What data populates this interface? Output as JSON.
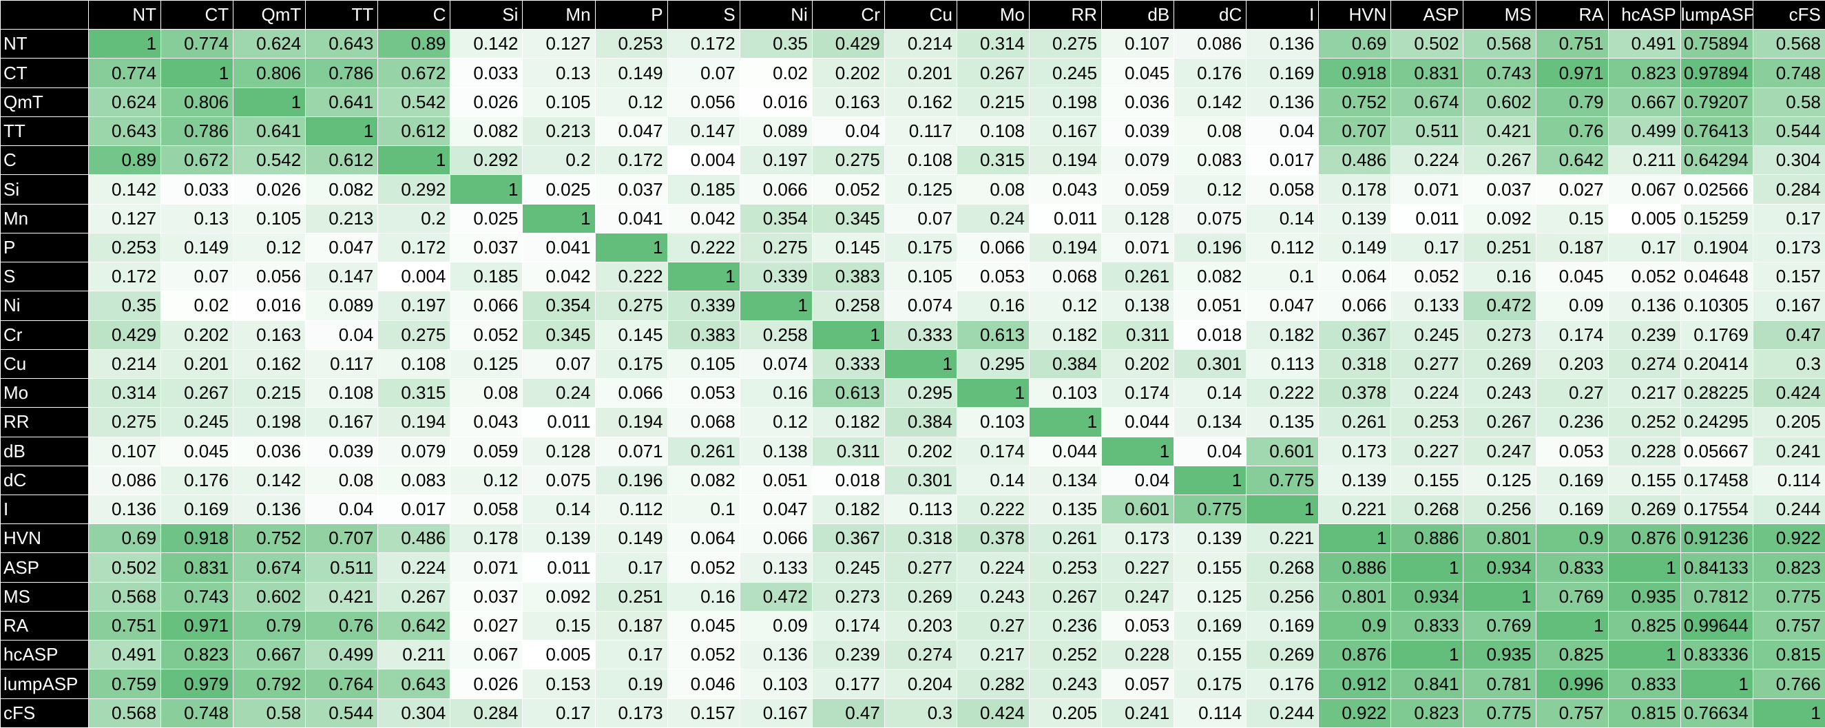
{
  "chart_data": {
    "type": "heatmap",
    "colors": {
      "low": "#ffffff",
      "high": "#63be7b",
      "header_bg": "#000000",
      "header_text": "#ffffff"
    },
    "color_range": [
      0,
      1
    ],
    "columns": [
      "NT",
      "CT",
      "QmT",
      "TT",
      "C",
      "Si",
      "Mn",
      "P",
      "S",
      "Ni",
      "Cr",
      "Cu",
      "Mo",
      "RR",
      "dB",
      "dC",
      "I",
      "HVN",
      "ASP",
      "MS",
      "RA",
      "hcASP",
      "lumpASP",
      "cFS"
    ],
    "rows": [
      {
        "label": "NT",
        "values": [
          "1",
          "0.774",
          "0.624",
          "0.643",
          "0.89",
          "0.142",
          "0.127",
          "0.253",
          "0.172",
          "0.35",
          "0.429",
          "0.214",
          "0.314",
          "0.275",
          "0.107",
          "0.086",
          "0.136",
          "0.69",
          "0.502",
          "0.568",
          "0.751",
          "0.491",
          "0.75894",
          "0.568"
        ]
      },
      {
        "label": "CT",
        "values": [
          "0.774",
          "1",
          "0.806",
          "0.786",
          "0.672",
          "0.033",
          "0.13",
          "0.149",
          "0.07",
          "0.02",
          "0.202",
          "0.201",
          "0.267",
          "0.245",
          "0.045",
          "0.176",
          "0.169",
          "0.918",
          "0.831",
          "0.743",
          "0.971",
          "0.823",
          "0.97894",
          "0.748"
        ]
      },
      {
        "label": "QmT",
        "values": [
          "0.624",
          "0.806",
          "1",
          "0.641",
          "0.542",
          "0.026",
          "0.105",
          "0.12",
          "0.056",
          "0.016",
          "0.163",
          "0.162",
          "0.215",
          "0.198",
          "0.036",
          "0.142",
          "0.136",
          "0.752",
          "0.674",
          "0.602",
          "0.79",
          "0.667",
          "0.79207",
          "0.58"
        ]
      },
      {
        "label": "TT",
        "values": [
          "0.643",
          "0.786",
          "0.641",
          "1",
          "0.612",
          "0.082",
          "0.213",
          "0.047",
          "0.147",
          "0.089",
          "0.04",
          "0.117",
          "0.108",
          "0.167",
          "0.039",
          "0.08",
          "0.04",
          "0.707",
          "0.511",
          "0.421",
          "0.76",
          "0.499",
          "0.76413",
          "0.544"
        ]
      },
      {
        "label": "C",
        "values": [
          "0.89",
          "0.672",
          "0.542",
          "0.612",
          "1",
          "0.292",
          "0.2",
          "0.172",
          "0.004",
          "0.197",
          "0.275",
          "0.108",
          "0.315",
          "0.194",
          "0.079",
          "0.083",
          "0.017",
          "0.486",
          "0.224",
          "0.267",
          "0.642",
          "0.211",
          "0.64294",
          "0.304"
        ]
      },
      {
        "label": "Si",
        "values": [
          "0.142",
          "0.033",
          "0.026",
          "0.082",
          "0.292",
          "1",
          "0.025",
          "0.037",
          "0.185",
          "0.066",
          "0.052",
          "0.125",
          "0.08",
          "0.043",
          "0.059",
          "0.12",
          "0.058",
          "0.178",
          "0.071",
          "0.037",
          "0.027",
          "0.067",
          "0.02566",
          "0.284"
        ]
      },
      {
        "label": "Mn",
        "values": [
          "0.127",
          "0.13",
          "0.105",
          "0.213",
          "0.2",
          "0.025",
          "1",
          "0.041",
          "0.042",
          "0.354",
          "0.345",
          "0.07",
          "0.24",
          "0.011",
          "0.128",
          "0.075",
          "0.14",
          "0.139",
          "0.011",
          "0.092",
          "0.15",
          "0.005",
          "0.15259",
          "0.17"
        ]
      },
      {
        "label": "P",
        "values": [
          "0.253",
          "0.149",
          "0.12",
          "0.047",
          "0.172",
          "0.037",
          "0.041",
          "1",
          "0.222",
          "0.275",
          "0.145",
          "0.175",
          "0.066",
          "0.194",
          "0.071",
          "0.196",
          "0.112",
          "0.149",
          "0.17",
          "0.251",
          "0.187",
          "0.17",
          "0.1904",
          "0.173"
        ]
      },
      {
        "label": "S",
        "values": [
          "0.172",
          "0.07",
          "0.056",
          "0.147",
          "0.004",
          "0.185",
          "0.042",
          "0.222",
          "1",
          "0.339",
          "0.383",
          "0.105",
          "0.053",
          "0.068",
          "0.261",
          "0.082",
          "0.1",
          "0.064",
          "0.052",
          "0.16",
          "0.045",
          "0.052",
          "0.04648",
          "0.157"
        ]
      },
      {
        "label": "Ni",
        "values": [
          "0.35",
          "0.02",
          "0.016",
          "0.089",
          "0.197",
          "0.066",
          "0.354",
          "0.275",
          "0.339",
          "1",
          "0.258",
          "0.074",
          "0.16",
          "0.12",
          "0.138",
          "0.051",
          "0.047",
          "0.066",
          "0.133",
          "0.472",
          "0.09",
          "0.136",
          "0.10305",
          "0.167"
        ]
      },
      {
        "label": "Cr",
        "values": [
          "0.429",
          "0.202",
          "0.163",
          "0.04",
          "0.275",
          "0.052",
          "0.345",
          "0.145",
          "0.383",
          "0.258",
          "1",
          "0.333",
          "0.613",
          "0.182",
          "0.311",
          "0.018",
          "0.182",
          "0.367",
          "0.245",
          "0.273",
          "0.174",
          "0.239",
          "0.1769",
          "0.47"
        ]
      },
      {
        "label": "Cu",
        "values": [
          "0.214",
          "0.201",
          "0.162",
          "0.117",
          "0.108",
          "0.125",
          "0.07",
          "0.175",
          "0.105",
          "0.074",
          "0.333",
          "1",
          "0.295",
          "0.384",
          "0.202",
          "0.301",
          "0.113",
          "0.318",
          "0.277",
          "0.269",
          "0.203",
          "0.274",
          "0.20414",
          "0.3"
        ]
      },
      {
        "label": "Mo",
        "values": [
          "0.314",
          "0.267",
          "0.215",
          "0.108",
          "0.315",
          "0.08",
          "0.24",
          "0.066",
          "0.053",
          "0.16",
          "0.613",
          "0.295",
          "1",
          "0.103",
          "0.174",
          "0.14",
          "0.222",
          "0.378",
          "0.224",
          "0.243",
          "0.27",
          "0.217",
          "0.28225",
          "0.424"
        ]
      },
      {
        "label": "RR",
        "values": [
          "0.275",
          "0.245",
          "0.198",
          "0.167",
          "0.194",
          "0.043",
          "0.011",
          "0.194",
          "0.068",
          "0.12",
          "0.182",
          "0.384",
          "0.103",
          "1",
          "0.044",
          "0.134",
          "0.135",
          "0.261",
          "0.253",
          "0.267",
          "0.236",
          "0.252",
          "0.24295",
          "0.205"
        ]
      },
      {
        "label": "dB",
        "values": [
          "0.107",
          "0.045",
          "0.036",
          "0.039",
          "0.079",
          "0.059",
          "0.128",
          "0.071",
          "0.261",
          "0.138",
          "0.311",
          "0.202",
          "0.174",
          "0.044",
          "1",
          "0.04",
          "0.601",
          "0.173",
          "0.227",
          "0.247",
          "0.053",
          "0.228",
          "0.05667",
          "0.241"
        ]
      },
      {
        "label": "dC",
        "values": [
          "0.086",
          "0.176",
          "0.142",
          "0.08",
          "0.083",
          "0.12",
          "0.075",
          "0.196",
          "0.082",
          "0.051",
          "0.018",
          "0.301",
          "0.14",
          "0.134",
          "0.04",
          "1",
          "0.775",
          "0.139",
          "0.155",
          "0.125",
          "0.169",
          "0.155",
          "0.17458",
          "0.114"
        ]
      },
      {
        "label": "I",
        "values": [
          "0.136",
          "0.169",
          "0.136",
          "0.04",
          "0.017",
          "0.058",
          "0.14",
          "0.112",
          "0.1",
          "0.047",
          "0.182",
          "0.113",
          "0.222",
          "0.135",
          "0.601",
          "0.775",
          "1",
          "0.221",
          "0.268",
          "0.256",
          "0.169",
          "0.269",
          "0.17554",
          "0.244"
        ]
      },
      {
        "label": "HVN",
        "values": [
          "0.69",
          "0.918",
          "0.752",
          "0.707",
          "0.486",
          "0.178",
          "0.139",
          "0.149",
          "0.064",
          "0.066",
          "0.367",
          "0.318",
          "0.378",
          "0.261",
          "0.173",
          "0.139",
          "0.221",
          "1",
          "0.886",
          "0.801",
          "0.9",
          "0.876",
          "0.91236",
          "0.922"
        ]
      },
      {
        "label": "ASP",
        "values": [
          "0.502",
          "0.831",
          "0.674",
          "0.511",
          "0.224",
          "0.071",
          "0.011",
          "0.17",
          "0.052",
          "0.133",
          "0.245",
          "0.277",
          "0.224",
          "0.253",
          "0.227",
          "0.155",
          "0.268",
          "0.886",
          "1",
          "0.934",
          "0.833",
          "1",
          "0.84133",
          "0.823"
        ]
      },
      {
        "label": "MS",
        "values": [
          "0.568",
          "0.743",
          "0.602",
          "0.421",
          "0.267",
          "0.037",
          "0.092",
          "0.251",
          "0.16",
          "0.472",
          "0.273",
          "0.269",
          "0.243",
          "0.267",
          "0.247",
          "0.125",
          "0.256",
          "0.801",
          "0.934",
          "1",
          "0.769",
          "0.935",
          "0.7812",
          "0.775"
        ]
      },
      {
        "label": "RA",
        "values": [
          "0.751",
          "0.971",
          "0.79",
          "0.76",
          "0.642",
          "0.027",
          "0.15",
          "0.187",
          "0.045",
          "0.09",
          "0.174",
          "0.203",
          "0.27",
          "0.236",
          "0.053",
          "0.169",
          "0.169",
          "0.9",
          "0.833",
          "0.769",
          "1",
          "0.825",
          "0.99644",
          "0.757"
        ]
      },
      {
        "label": "hcASP",
        "values": [
          "0.491",
          "0.823",
          "0.667",
          "0.499",
          "0.211",
          "0.067",
          "0.005",
          "0.17",
          "0.052",
          "0.136",
          "0.239",
          "0.274",
          "0.217",
          "0.252",
          "0.228",
          "0.155",
          "0.269",
          "0.876",
          "1",
          "0.935",
          "0.825",
          "1",
          "0.83336",
          "0.815"
        ]
      },
      {
        "label": "lumpASP",
        "values": [
          "0.759",
          "0.979",
          "0.792",
          "0.764",
          "0.643",
          "0.026",
          "0.153",
          "0.19",
          "0.046",
          "0.103",
          "0.177",
          "0.204",
          "0.282",
          "0.243",
          "0.057",
          "0.175",
          "0.176",
          "0.912",
          "0.841",
          "0.781",
          "0.996",
          "0.833",
          "1",
          "0.766"
        ]
      },
      {
        "label": "cFS",
        "values": [
          "0.568",
          "0.748",
          "0.58",
          "0.544",
          "0.304",
          "0.284",
          "0.17",
          "0.173",
          "0.157",
          "0.167",
          "0.47",
          "0.3",
          "0.424",
          "0.205",
          "0.241",
          "0.114",
          "0.244",
          "0.922",
          "0.823",
          "0.775",
          "0.757",
          "0.815",
          "0.76634",
          "1"
        ]
      }
    ]
  }
}
